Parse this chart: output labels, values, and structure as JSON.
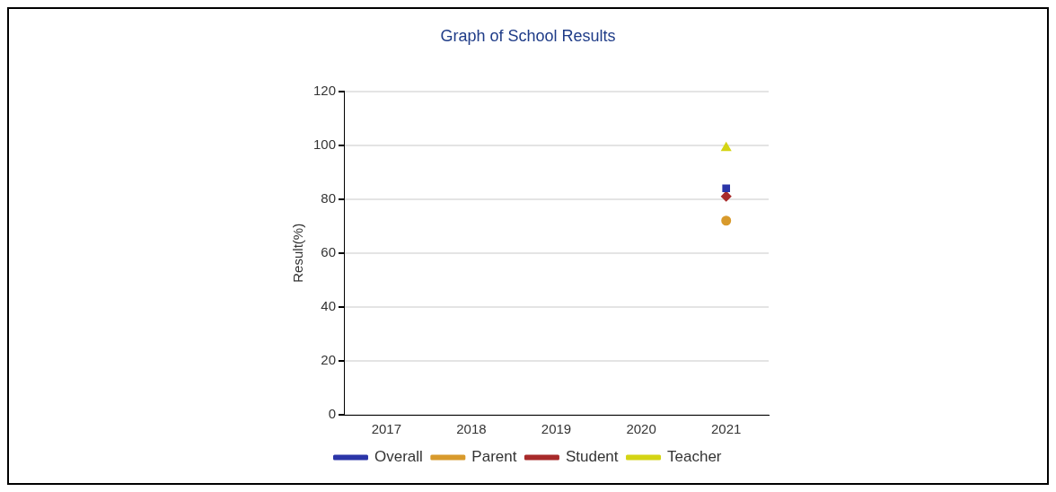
{
  "chart_data": {
    "type": "line",
    "title": "Graph of School Results",
    "ylabel": "Result(%)",
    "categories": [
      "2017",
      "2018",
      "2019",
      "2020",
      "2021"
    ],
    "series": [
      {
        "name": "Overall",
        "color": "#2b35a8",
        "values": [
          null,
          null,
          null,
          null,
          84
        ],
        "marker": "square"
      },
      {
        "name": "Parent",
        "color": "#d89a2c",
        "values": [
          null,
          null,
          null,
          null,
          72
        ],
        "marker": "circle"
      },
      {
        "name": "Student",
        "color": "#a82a2a",
        "values": [
          null,
          null,
          null,
          null,
          81
        ],
        "marker": "diamond"
      },
      {
        "name": "Teacher",
        "color": "#d4d414",
        "values": [
          null,
          null,
          null,
          null,
          99
        ],
        "marker": "triangle"
      }
    ],
    "ylim": [
      0,
      120
    ],
    "yticks": [
      0,
      20,
      40,
      60,
      80,
      100,
      120
    ],
    "grid": "y",
    "legend": "bottom"
  }
}
